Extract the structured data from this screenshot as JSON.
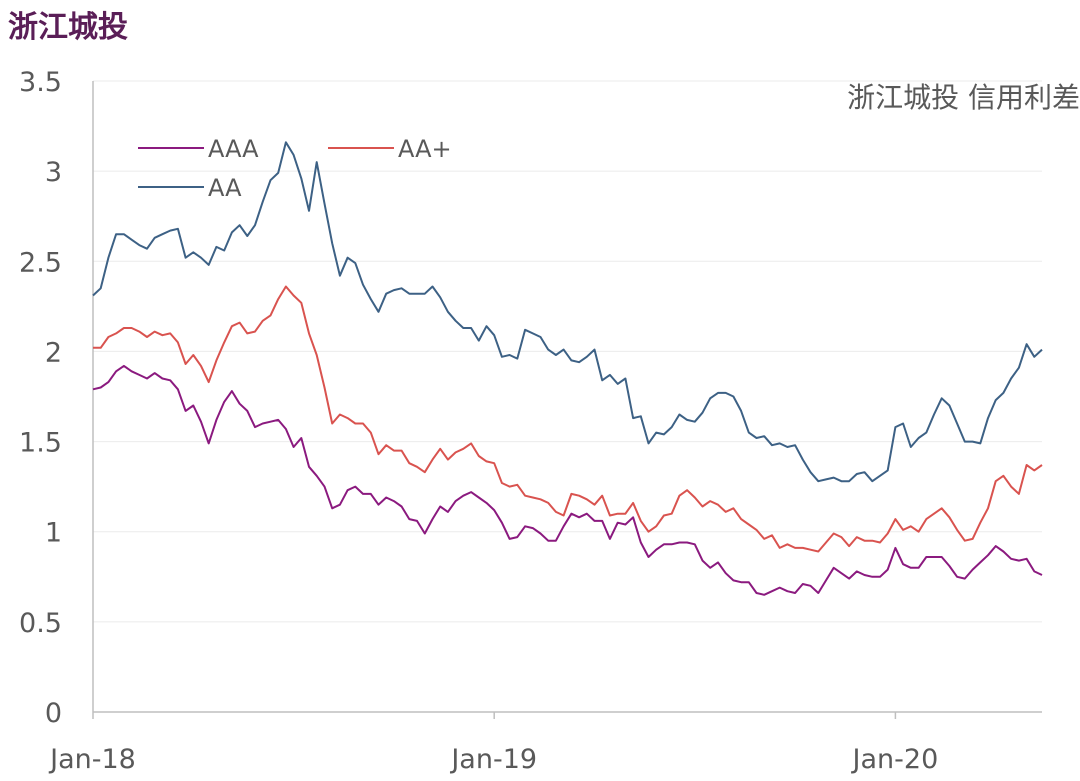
{
  "page": {
    "title": "浙江城投"
  },
  "chart_data": {
    "type": "line",
    "title": "浙江城投 信用利差",
    "xlabel": "",
    "ylabel": "",
    "ylim": [
      0,
      3.5
    ],
    "yticks": [
      "0",
      "0.5",
      "1",
      "1.5",
      "2",
      "2.5",
      "3",
      "3.5"
    ],
    "xticks": [
      "Jan-18",
      "Jan-19",
      "Jan-20"
    ],
    "x_ticks_index": [
      0,
      52,
      104
    ],
    "grid": true,
    "legend_position": "top-left",
    "series": [
      {
        "name": "AAA",
        "color": "#8b1a7f",
        "values": [
          1.79,
          1.8,
          1.83,
          1.89,
          1.92,
          1.89,
          1.87,
          1.85,
          1.88,
          1.85,
          1.84,
          1.79,
          1.67,
          1.7,
          1.61,
          1.49,
          1.62,
          1.72,
          1.78,
          1.71,
          1.67,
          1.58,
          1.6,
          1.61,
          1.62,
          1.57,
          1.47,
          1.52,
          1.36,
          1.31,
          1.25,
          1.13,
          1.15,
          1.23,
          1.25,
          1.21,
          1.21,
          1.15,
          1.19,
          1.17,
          1.14,
          1.07,
          1.06,
          0.99,
          1.07,
          1.14,
          1.11,
          1.17,
          1.2,
          1.22,
          1.19,
          1.16,
          1.12,
          1.05,
          0.96,
          0.97,
          1.03,
          1.02,
          0.99,
          0.95,
          0.95,
          1.03,
          1.1,
          1.08,
          1.1,
          1.06,
          1.06,
          0.96,
          1.05,
          1.04,
          1.08,
          0.94,
          0.86,
          0.9,
          0.93,
          0.93,
          0.94,
          0.94,
          0.93,
          0.84,
          0.8,
          0.83,
          0.77,
          0.73,
          0.72,
          0.72,
          0.66,
          0.65,
          0.67,
          0.69,
          0.67,
          0.66,
          0.71,
          0.7,
          0.66,
          0.73,
          0.8,
          0.77,
          0.74,
          0.78,
          0.76,
          0.75,
          0.75,
          0.79,
          0.91,
          0.82,
          0.8,
          0.8,
          0.86,
          0.86,
          0.86,
          0.81,
          0.75,
          0.74,
          0.79,
          0.83,
          0.87,
          0.92,
          0.89,
          0.85,
          0.84,
          0.85,
          0.78,
          0.76
        ]
      },
      {
        "name": "AA+",
        "color": "#d9534f",
        "values": [
          2.02,
          2.02,
          2.08,
          2.1,
          2.13,
          2.13,
          2.11,
          2.08,
          2.11,
          2.09,
          2.1,
          2.05,
          1.93,
          1.98,
          1.92,
          1.83,
          1.95,
          2.05,
          2.14,
          2.16,
          2.1,
          2.11,
          2.17,
          2.2,
          2.29,
          2.36,
          2.31,
          2.27,
          2.1,
          1.98,
          1.8,
          1.6,
          1.65,
          1.63,
          1.6,
          1.6,
          1.55,
          1.43,
          1.48,
          1.45,
          1.45,
          1.38,
          1.36,
          1.33,
          1.4,
          1.46,
          1.4,
          1.44,
          1.46,
          1.49,
          1.42,
          1.39,
          1.38,
          1.27,
          1.25,
          1.26,
          1.2,
          1.19,
          1.18,
          1.16,
          1.11,
          1.09,
          1.21,
          1.2,
          1.18,
          1.15,
          1.2,
          1.09,
          1.1,
          1.1,
          1.16,
          1.06,
          1.0,
          1.03,
          1.09,
          1.1,
          1.2,
          1.23,
          1.19,
          1.14,
          1.17,
          1.15,
          1.11,
          1.13,
          1.07,
          1.04,
          1.01,
          0.96,
          0.98,
          0.91,
          0.93,
          0.91,
          0.91,
          0.9,
          0.89,
          0.94,
          0.99,
          0.97,
          0.92,
          0.97,
          0.95,
          0.95,
          0.94,
          0.99,
          1.07,
          1.01,
          1.03,
          1.0,
          1.07,
          1.1,
          1.13,
          1.08,
          1.01,
          0.95,
          0.96,
          1.05,
          1.13,
          1.28,
          1.31,
          1.25,
          1.21,
          1.37,
          1.34,
          1.37
        ]
      },
      {
        "name": "AA",
        "color": "#3d6185",
        "values": [
          2.31,
          2.35,
          2.52,
          2.65,
          2.65,
          2.62,
          2.59,
          2.57,
          2.63,
          2.65,
          2.67,
          2.68,
          2.52,
          2.55,
          2.52,
          2.48,
          2.58,
          2.56,
          2.66,
          2.7,
          2.64,
          2.7,
          2.83,
          2.95,
          2.99,
          3.16,
          3.09,
          2.96,
          2.78,
          3.05,
          2.82,
          2.6,
          2.42,
          2.52,
          2.49,
          2.37,
          2.29,
          2.22,
          2.32,
          2.34,
          2.35,
          2.32,
          2.32,
          2.32,
          2.36,
          2.3,
          2.22,
          2.17,
          2.13,
          2.13,
          2.06,
          2.14,
          2.09,
          1.97,
          1.98,
          1.96,
          2.12,
          2.1,
          2.08,
          2.01,
          1.98,
          2.01,
          1.95,
          1.94,
          1.97,
          2.01,
          1.84,
          1.87,
          1.82,
          1.85,
          1.63,
          1.64,
          1.49,
          1.55,
          1.54,
          1.58,
          1.65,
          1.62,
          1.61,
          1.66,
          1.74,
          1.77,
          1.77,
          1.75,
          1.67,
          1.55,
          1.52,
          1.53,
          1.48,
          1.49,
          1.47,
          1.48,
          1.4,
          1.33,
          1.28,
          1.29,
          1.3,
          1.28,
          1.28,
          1.32,
          1.33,
          1.28,
          1.31,
          1.34,
          1.58,
          1.6,
          1.47,
          1.52,
          1.55,
          1.65,
          1.74,
          1.7,
          1.6,
          1.5,
          1.5,
          1.49,
          1.63,
          1.73,
          1.77,
          1.85,
          1.91,
          2.04,
          1.97,
          2.01
        ]
      }
    ]
  }
}
